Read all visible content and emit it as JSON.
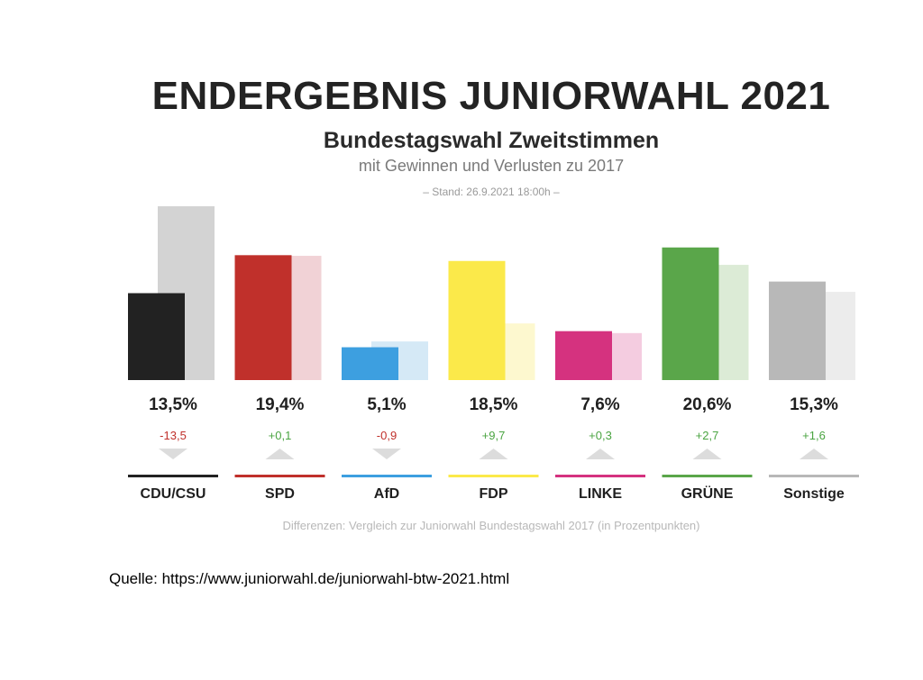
{
  "header": {
    "title": "ENDERGEBNIS JUNIORWAHL 2021",
    "subtitle": "Bundestagswahl Zweitstimmen",
    "subtitle2": "mit Gewinnen und Verlusten zu 2017",
    "stand": "– Stand: 26.9.2021 18:00h –"
  },
  "footnote": "Differenzen: Vergleich zur Juniorwahl Bundestagswahl 2017 (in Prozentpunkten)",
  "source": "Quelle: https://www.juniorwahl.de/juniorwahl-btw-2021.html",
  "chart_data": {
    "type": "bar",
    "categories": [
      "CDU/CSU",
      "SPD",
      "AfD",
      "FDP",
      "LINKE",
      "GRÜNE",
      "Sonstige"
    ],
    "series": [
      {
        "values": [
          13.5,
          19.4,
          5.1,
          18.5,
          7.6,
          20.6,
          15.3
        ]
      },
      {
        "values": [
          27.0,
          19.3,
          6.0,
          8.8,
          7.3,
          17.9,
          13.7
        ]
      }
    ],
    "value_labels": [
      "13,5%",
      "19,4%",
      "5,1%",
      "18,5%",
      "7,6%",
      "20,6%",
      "15,3%"
    ],
    "diff_labels": [
      "-13,5",
      "+0,1",
      "-0,9",
      "+9,7",
      "+0,3",
      "+2,7",
      "+1,6"
    ],
    "diff_direction": [
      "down",
      "up",
      "down",
      "up",
      "up",
      "up",
      "up"
    ],
    "colors": [
      "#222222",
      "#c0302b",
      "#3d9fe0",
      "#fbe94a",
      "#d5327f",
      "#5aa64a",
      "#b8b8b8"
    ],
    "light_colors": [
      "#d3d3d3",
      "#f1d2d6",
      "#d5e9f6",
      "#fdf8cf",
      "#f4cce0",
      "#dcebd6",
      "#ececec"
    ],
    "positive_color": "#4aa441",
    "negative_color": "#c0302b",
    "ylim": [
      0,
      27
    ]
  }
}
